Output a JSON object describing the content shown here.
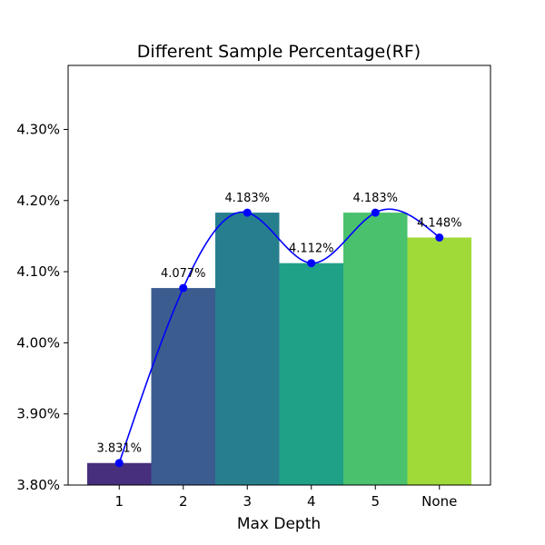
{
  "chart_data": {
    "type": "bar",
    "title": "Different Sample Percentage(RF)",
    "xlabel": "Max Depth",
    "ylabel": "",
    "categories": [
      "1",
      "2",
      "3",
      "4",
      "5",
      "None"
    ],
    "values": [
      3.831,
      4.077,
      4.183,
      4.112,
      4.183,
      4.148
    ],
    "data_labels": [
      "3.831%",
      "4.077%",
      "4.183%",
      "4.112%",
      "4.183%",
      "4.148%"
    ],
    "bar_colors": [
      "#472f7d",
      "#3b5c8f",
      "#277f8e",
      "#1fa187",
      "#4ac16d",
      "#a0da39"
    ],
    "overlay_line": {
      "type": "smooth-line-with-markers",
      "color": "#0000ff"
    },
    "ylim": [
      3.8,
      4.39
    ],
    "yticks": [
      3.8,
      3.9,
      4.0,
      4.1,
      4.2,
      4.3
    ],
    "ytick_labels": [
      "3.80%",
      "3.90%",
      "4.00%",
      "4.10%",
      "4.20%",
      "4.30%"
    ],
    "grid": false,
    "legend": "none"
  }
}
